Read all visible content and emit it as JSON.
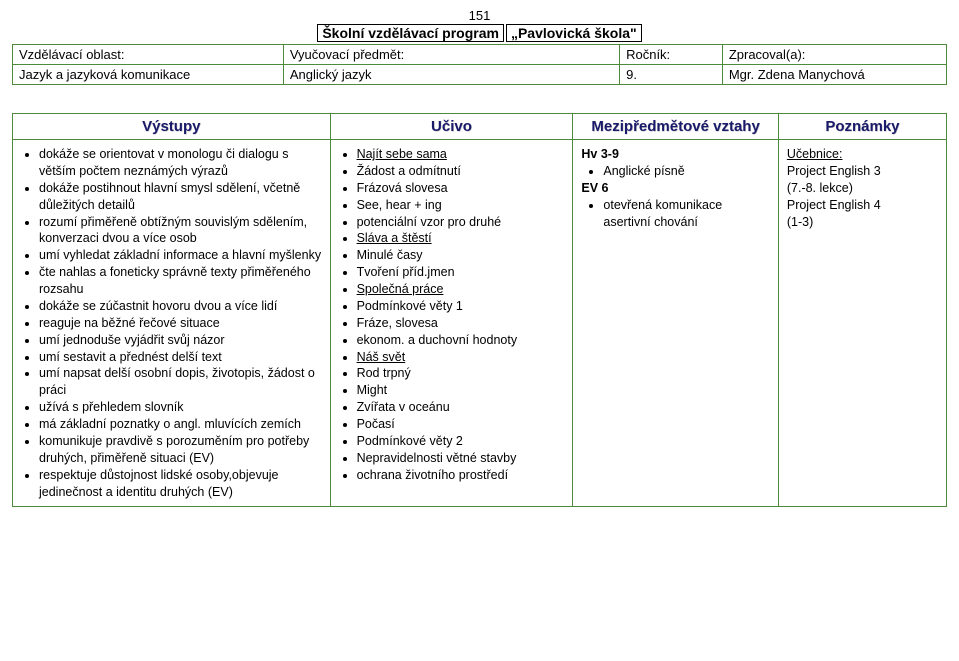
{
  "page_number": "151",
  "title_boxes": [
    "Školní vzdělávací program",
    "„Pavlovická škola\""
  ],
  "meta": {
    "r1c1_label": "Vzdělávací oblast:",
    "r1c2_label": "Vyučovací předmět:",
    "r1c3_label": "Ročník:",
    "r1c4_label": "Zpracoval(a):",
    "r2c1": "Jazyk a jazyková komunikace",
    "r2c2": "Anglický jazyk",
    "r2c3": "9.",
    "r2c4": "Mgr. Zdena Manychová"
  },
  "headers": {
    "c1": "Výstupy",
    "c2": "Učivo",
    "c3": "Mezipředmětové vztahy",
    "c4": "Poznámky"
  },
  "col1": [
    "dokáže se orientovat v monologu či dialogu s větším počtem neznámých výrazů",
    "dokáže postihnout hlavní smysl sdělení, včetně důležitých detailů",
    "rozumí přiměřeně obtížným souvislým sdělením, konverzaci dvou a více osob",
    "umí vyhledat základní informace a hlavní myšlenky",
    "čte nahlas a foneticky správně texty přiměřeného rozsahu",
    "dokáže se zúčastnit hovoru dvou a více lidí",
    "reaguje na běžné řečové situace",
    "umí jednoduše vyjádřit svůj názor",
    "umí sestavit a přednést delší text",
    "umí napsat delší osobní dopis, životopis, žádost o práci",
    "užívá s přehledem slovník",
    "má základní poznatky o angl. mluvících zemích",
    "komunikuje pravdivě s porozuměním pro potřeby druhých, přiměřeně situaci (EV)",
    "respektuje důstojnost lidské osoby,objevuje jedinečnost a identitu druhých (EV)"
  ],
  "col2": [
    {
      "text": "Najít sebe sama",
      "u": true
    },
    {
      "text": "Žádost a odmítnutí",
      "u": false
    },
    {
      "text": "Frázová slovesa",
      "u": false
    },
    {
      "text": "See, hear + ing",
      "u": false
    },
    {
      "text": "potenciální vzor pro druhé",
      "u": false
    },
    {
      "text": "Sláva a štěstí",
      "u": true
    },
    {
      "text": "Minulé časy",
      "u": false
    },
    {
      "text": "Tvoření příd.jmen",
      "u": false
    },
    {
      "text": "Společná práce",
      "u": true
    },
    {
      "text": "Podmínkové věty 1",
      "u": false
    },
    {
      "text": "Fráze, slovesa",
      "u": false
    },
    {
      "text": "ekonom. a duchovní hodnoty",
      "u": false
    },
    {
      "text": "Náš svět",
      "u": true
    },
    {
      "text": "Rod trpný",
      "u": false
    },
    {
      "text": "Might",
      "u": false
    },
    {
      "text": "Zvířata v oceánu",
      "u": false
    },
    {
      "text": "Počasí",
      "u": false
    },
    {
      "text": "Podmínkové věty 2",
      "u": false
    },
    {
      "text": "Nepravidelnosti větné stavby",
      "u": false
    },
    {
      "text": "ochrana životního prostředí",
      "u": false
    }
  ],
  "col3": {
    "line1": "Hv 3-9",
    "sub1": "Anglické písně",
    "line2": "EV 6",
    "sub2a": "otevřená komunikace",
    "sub2b": "asertivní chování"
  },
  "col4": {
    "h": "Učebnice:",
    "l1": "Project English 3",
    "l2": "(7.-8. lekce)",
    "l3": "Project English 4",
    "l4": "(1-3)"
  }
}
